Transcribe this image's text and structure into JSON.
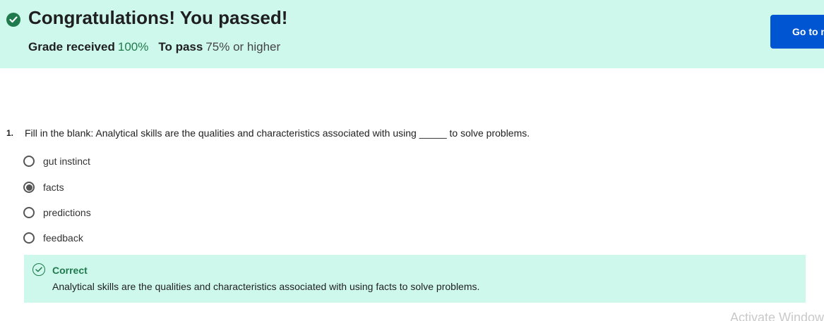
{
  "banner": {
    "title": "Congratulations! You passed!",
    "grade_label": "Grade received",
    "grade_value": "100%",
    "pass_label": "To pass",
    "pass_value": "75% or higher",
    "button_label": "Go to next item",
    "colors": {
      "banner_bg": "#cff8ec",
      "success": "#1f7a4d",
      "button_bg": "#0056d2"
    }
  },
  "question": {
    "number": "1.",
    "text": "Fill in the blank: Analytical skills are the qualities and characteristics associated with using _____ to solve problems.",
    "options": [
      {
        "label": "gut instinct",
        "selected": false
      },
      {
        "label": "facts",
        "selected": true
      },
      {
        "label": "predictions",
        "selected": false
      },
      {
        "label": "feedback",
        "selected": false
      }
    ]
  },
  "feedback": {
    "icon": "check-circle-icon",
    "title": "Correct",
    "text": "Analytical skills are the qualities and characteristics associated with using facts to solve problems."
  },
  "watermark": "Activate Windows"
}
